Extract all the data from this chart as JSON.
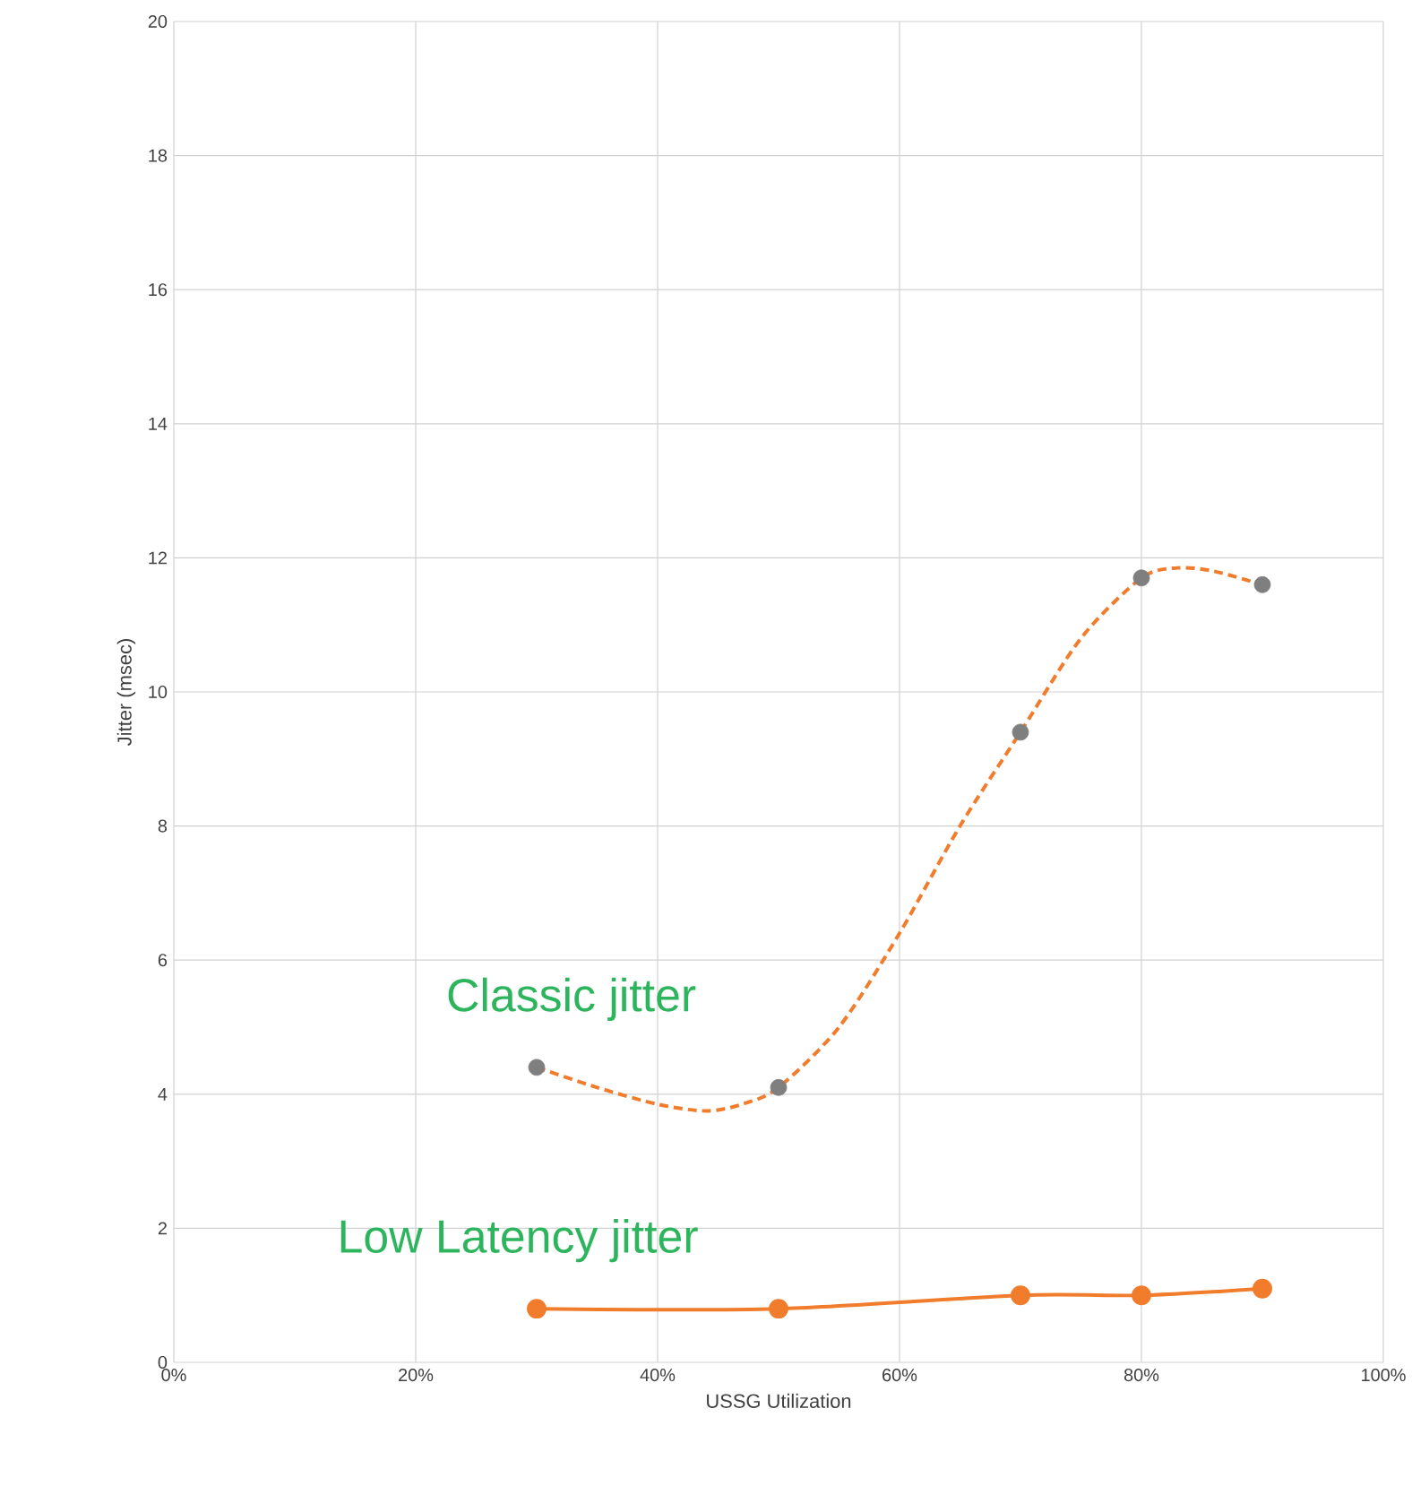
{
  "chart_data": {
    "type": "line",
    "xlabel": "USSG Utilization",
    "ylabel": "Jitter (msec)",
    "xlim": [
      0,
      100
    ],
    "ylim": [
      0,
      20
    ],
    "xticks": [
      {
        "value": 0,
        "label": "0%"
      },
      {
        "value": 20,
        "label": "20%"
      },
      {
        "value": 40,
        "label": "40%"
      },
      {
        "value": 60,
        "label": "60%"
      },
      {
        "value": 80,
        "label": "80%"
      },
      {
        "value": 100,
        "label": "100%"
      }
    ],
    "yticks": [
      0,
      2,
      4,
      6,
      8,
      10,
      12,
      14,
      16,
      18,
      20
    ],
    "grid": true,
    "series": [
      {
        "type": "scatter",
        "color": "#7f7f7f",
        "marker": "circle",
        "x": [
          30,
          50,
          70,
          80,
          90
        ],
        "values": [
          4.4,
          4.1,
          9.4,
          11.7,
          11.6
        ]
      },
      {
        "name": "Classic jitter",
        "color": "#f07c2c",
        "marker": "none",
        "line_style": "dashed",
        "x": [
          30,
          35,
          40,
          44,
          47,
          50,
          55,
          60,
          65,
          70,
          75,
          80,
          83,
          86,
          90
        ],
        "values": [
          4.4,
          4.1,
          3.85,
          3.75,
          3.85,
          4.1,
          5.0,
          6.4,
          8.0,
          9.4,
          10.8,
          11.7,
          11.85,
          11.8,
          11.6
        ]
      },
      {
        "name": "Low Latency jitter",
        "color": "#f07c2c",
        "marker": "circle",
        "line_style": "solid",
        "x": [
          30,
          50,
          70,
          80,
          90
        ],
        "values": [
          0.8,
          0.8,
          1.0,
          1.0,
          1.1
        ]
      }
    ]
  }
}
